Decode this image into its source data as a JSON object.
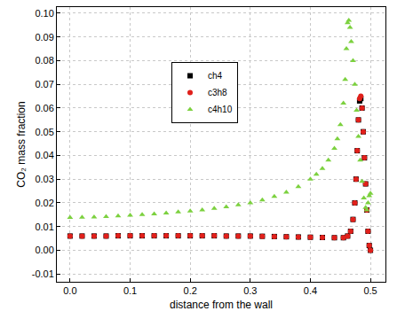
{
  "chart_data": {
    "type": "scatter",
    "x_label": "distance from the wall",
    "y_label": "CO₂ mass fraction",
    "xlim": [
      -0.022,
      0.525
    ],
    "xticks": [
      {
        "value": 0,
        "label": "0.0"
      },
      0.1,
      0.2,
      0.3,
      0.4,
      0.5
    ],
    "ylim": [
      -0.0133,
      0.1026
    ],
    "yticks": [
      -0.01,
      {
        "value": 0,
        "label": "0.00"
      },
      0.01,
      0.02,
      0.03,
      0.04,
      0.05,
      0.06,
      0.07,
      0.08,
      0.09,
      {
        "value": 0.1,
        "label": "0.10"
      }
    ],
    "grid": true,
    "legend": "upper center",
    "series": [
      {
        "name": "ch4",
        "color": "#000000",
        "marker": "square",
        "x": [
          0,
          0.02,
          0.04,
          0.06,
          0.08,
          0.1,
          0.12,
          0.14,
          0.16,
          0.18,
          0.2,
          0.22,
          0.24,
          0.26,
          0.28,
          0.3,
          0.32,
          0.34,
          0.36,
          0.38,
          0.4,
          0.42,
          0.44,
          0.455,
          0.462,
          0.467,
          0.471,
          0.474,
          0.476,
          0.478,
          0.48,
          0.482,
          0.484,
          0.486,
          0.488,
          0.49,
          0.492,
          0.494,
          0.496,
          0.498,
          0.5
        ],
        "values": [
          0.006,
          0.006,
          0.006,
          0.006,
          0.0061,
          0.0061,
          0.0061,
          0.0061,
          0.0061,
          0.0061,
          0.0061,
          0.0061,
          0.0061,
          0.006,
          0.006,
          0.006,
          0.0059,
          0.0058,
          0.0057,
          0.0056,
          0.0055,
          0.0054,
          0.0053,
          0.0053,
          0.006,
          0.008,
          0.013,
          0.02,
          0.03,
          0.042,
          0.055,
          0.063,
          0.064,
          0.06,
          0.05,
          0.039,
          0.028,
          0.017,
          0.008,
          0.002,
          0
        ]
      },
      {
        "name": "c3h8",
        "color": "#e0201b",
        "marker": "circle",
        "x": [
          0,
          0.02,
          0.04,
          0.06,
          0.08,
          0.1,
          0.12,
          0.14,
          0.16,
          0.18,
          0.2,
          0.22,
          0.24,
          0.26,
          0.28,
          0.3,
          0.32,
          0.34,
          0.36,
          0.38,
          0.4,
          0.42,
          0.44,
          0.455,
          0.462,
          0.467,
          0.471,
          0.474,
          0.476,
          0.478,
          0.48,
          0.482,
          0.484,
          0.486,
          0.488,
          0.49,
          0.492,
          0.494,
          0.496,
          0.498,
          0.5
        ],
        "values": [
          0.006,
          0.006,
          0.006,
          0.006,
          0.0061,
          0.0061,
          0.0061,
          0.0061,
          0.0061,
          0.0061,
          0.0061,
          0.0061,
          0.0061,
          0.006,
          0.006,
          0.006,
          0.0059,
          0.0058,
          0.0057,
          0.0056,
          0.0055,
          0.0054,
          0.0053,
          0.0053,
          0.006,
          0.008,
          0.013,
          0.02,
          0.03,
          0.042,
          0.055,
          0.064,
          0.065,
          0.06,
          0.05,
          0.039,
          0.028,
          0.017,
          0.008,
          0.002,
          0
        ]
      },
      {
        "name": "c4h10",
        "color": "#7cd13f",
        "marker": "triangle-up",
        "x": [
          0,
          0.02,
          0.04,
          0.06,
          0.08,
          0.1,
          0.12,
          0.14,
          0.16,
          0.18,
          0.2,
          0.22,
          0.24,
          0.26,
          0.28,
          0.3,
          0.32,
          0.34,
          0.36,
          0.38,
          0.4,
          0.41,
          0.42,
          0.43,
          0.44,
          0.445,
          0.45,
          0.455,
          0.458,
          0.46,
          0.462,
          0.464,
          0.466,
          0.468,
          0.471,
          0.474,
          0.477,
          0.48,
          0.483,
          0.486,
          0.489,
          0.492,
          0.494,
          0.496,
          0.498,
          0.5
        ],
        "values": [
          0.0138,
          0.0139,
          0.014,
          0.0142,
          0.0145,
          0.0147,
          0.015,
          0.0153,
          0.0157,
          0.0161,
          0.0165,
          0.017,
          0.0176,
          0.0183,
          0.0191,
          0.02,
          0.0212,
          0.0227,
          0.0245,
          0.0268,
          0.03,
          0.032,
          0.0345,
          0.038,
          0.043,
          0.047,
          0.053,
          0.062,
          0.072,
          0.085,
          0.096,
          0.097,
          0.094,
          0.088,
          0.08,
          0.07,
          0.059,
          0.048,
          0.038,
          0.029,
          0.022,
          0.018,
          0.017,
          0.02,
          0.023,
          0.024
        ]
      }
    ]
  }
}
